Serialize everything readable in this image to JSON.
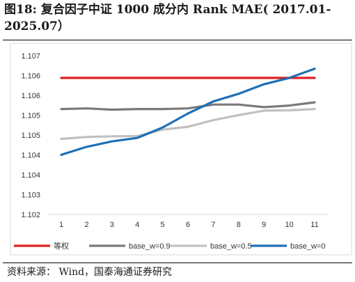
{
  "title": "图18:  复合因子中证 1000 成分内 Rank MAE( 2017.01-2025.07）",
  "source": "资料来源：  Wind，国泰海通证券研究",
  "chart_data": {
    "type": "line",
    "title": "",
    "xlabel": "",
    "ylabel": "",
    "x": [
      1,
      2,
      3,
      4,
      5,
      6,
      7,
      8,
      9,
      10,
      11
    ],
    "y_tick_labels": [
      "1.102",
      "1.103",
      "1.104",
      "1.104",
      "1.105",
      "1.105",
      "1.106",
      "1.106",
      "1.107"
    ],
    "ylim": [
      1.102,
      1.107
    ],
    "grid": false,
    "legend_position": "bottom",
    "series": [
      {
        "name": "等权",
        "color": "#e02020",
        "values": [
          1.1063,
          1.1063,
          1.1063,
          1.1063,
          1.1063,
          1.1063,
          1.1063,
          1.1063,
          1.1063,
          1.1063,
          1.1063
        ]
      },
      {
        "name": "base_w=0.9",
        "color": "#7a7a7a",
        "values": [
          1.10532,
          1.10534,
          1.1053,
          1.10532,
          1.10532,
          1.10534,
          1.10546,
          1.10546,
          1.10538,
          1.10543,
          1.10553
        ]
      },
      {
        "name": "base_w=0.5",
        "color": "#c0c0c0",
        "values": [
          1.10438,
          1.10444,
          1.10446,
          1.10447,
          1.10467,
          1.10476,
          1.10497,
          1.10513,
          1.10527,
          1.10528,
          1.10532
        ]
      },
      {
        "name": "base_w=0",
        "color": "#1f6fb5",
        "values": [
          1.10388,
          1.10413,
          1.1043,
          1.10441,
          1.10474,
          1.10518,
          1.10556,
          1.1058,
          1.1061,
          1.1063,
          1.10659
        ]
      }
    ]
  }
}
